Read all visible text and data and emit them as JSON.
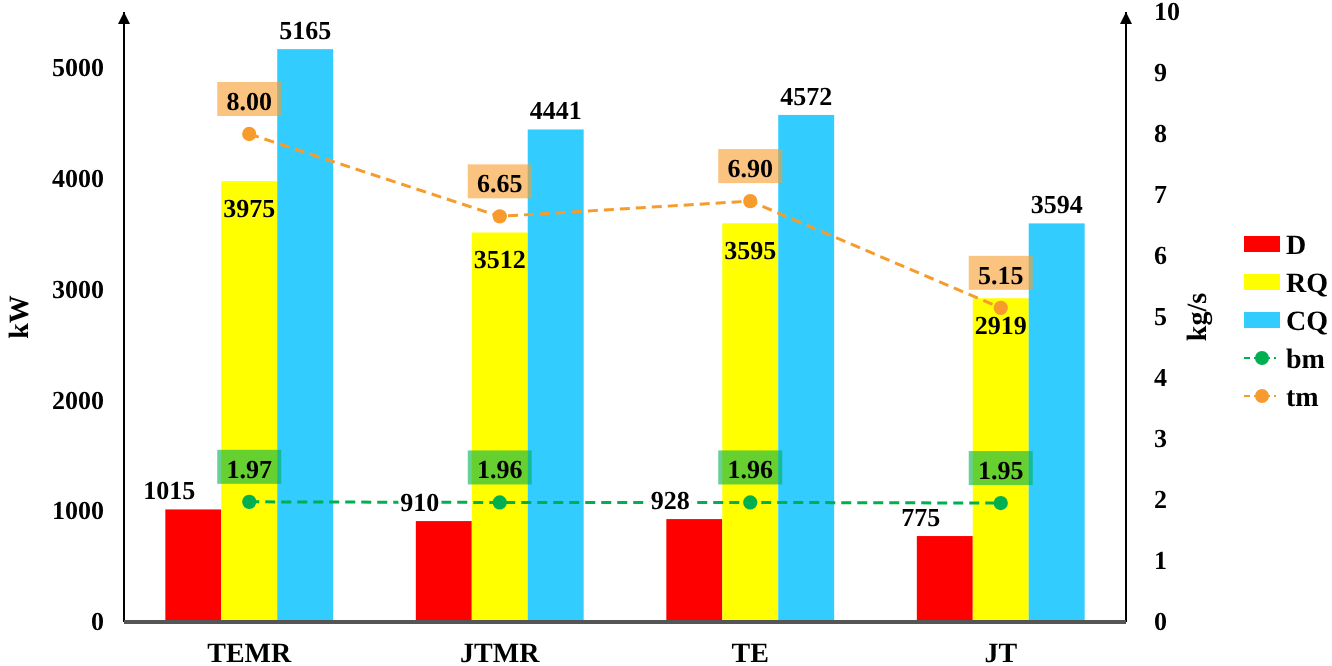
{
  "chart_data": {
    "type": "bar",
    "categories": [
      "TEMR",
      "JTMR",
      "TE",
      "JT"
    ],
    "ylabel": "kW",
    "y2label": "kg/s",
    "ylim": [
      0,
      5500
    ],
    "yticks": [
      0,
      1000,
      2000,
      3000,
      4000,
      5000
    ],
    "y2lim": [
      0,
      10
    ],
    "y2ticks": [
      0,
      1,
      2,
      3,
      4,
      5,
      6,
      7,
      8,
      9,
      10
    ],
    "grid": false,
    "legend": "right",
    "data_labels": true,
    "series": [
      {
        "name": "D",
        "color": "#ff0000",
        "values": [
          1015,
          910,
          928,
          775
        ]
      },
      {
        "name": "RQ",
        "color": "#ffff00",
        "values": [
          3975,
          3512,
          3595,
          2919
        ]
      },
      {
        "name": "CQ",
        "color": "#33ccff",
        "values": [
          5165,
          4441,
          4572,
          3594
        ]
      },
      {
        "name": "bm",
        "type": "line",
        "axis": "y2",
        "color": "#00b050",
        "marker": "circle",
        "line_style": "dashed",
        "values": [
          1.97,
          1.96,
          1.96,
          1.95
        ],
        "value_labels": [
          "1.97",
          "1.96",
          "1.96",
          "1.95"
        ]
      },
      {
        "name": "tm",
        "type": "line",
        "axis": "y2",
        "color": "#f79b2c",
        "marker": "circle",
        "line_style": "dashed",
        "values": [
          8.0,
          6.65,
          6.9,
          5.15
        ],
        "value_labels": [
          "8.00",
          "6.65",
          "6.90",
          "5.15"
        ]
      }
    ]
  }
}
